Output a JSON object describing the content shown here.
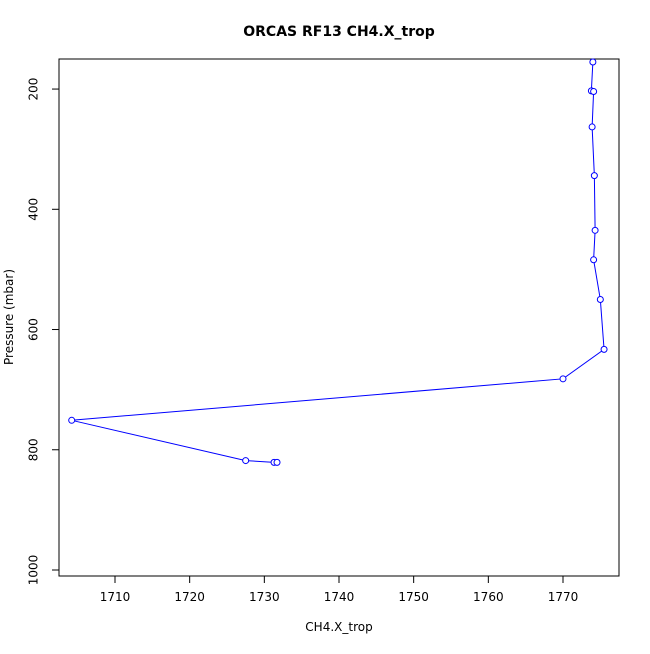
{
  "chart_data": {
    "type": "line",
    "title": "ORCAS RF13 CH4.X_trop",
    "xlabel": "CH4.X_trop",
    "ylabel": "Pressure (mbar)",
    "xlim": [
      1702.5,
      1777.5
    ],
    "ylim": [
      1010,
      150
    ],
    "y_reversed": true,
    "x_ticks": [
      1710,
      1720,
      1730,
      1740,
      1750,
      1760,
      1770
    ],
    "x_tick_labels": [
      "1710",
      "1720",
      "1730",
      "1740",
      "1750",
      "1760",
      "1770"
    ],
    "y_ticks": [
      200,
      400,
      600,
      800,
      1000
    ],
    "y_tick_labels": [
      "200",
      "400",
      "600",
      "800",
      "1000"
    ],
    "series_color": "#0000ff",
    "marker": "open-circle",
    "grid": false,
    "legend": "none",
    "series": [
      {
        "points": [
          {
            "x": 1774.0,
            "y": 155
          },
          {
            "x": 1773.8,
            "y": 203
          },
          {
            "x": 1774.1,
            "y": 204
          },
          {
            "x": 1773.9,
            "y": 263
          },
          {
            "x": 1774.2,
            "y": 344
          },
          {
            "x": 1774.3,
            "y": 435
          },
          {
            "x": 1774.1,
            "y": 484
          },
          {
            "x": 1775.0,
            "y": 550
          },
          {
            "x": 1775.5,
            "y": 633
          },
          {
            "x": 1770.0,
            "y": 682
          },
          {
            "x": 1704.2,
            "y": 751
          },
          {
            "x": 1727.5,
            "y": 818
          },
          {
            "x": 1731.3,
            "y": 821
          },
          {
            "x": 1731.7,
            "y": 821
          }
        ]
      }
    ]
  }
}
